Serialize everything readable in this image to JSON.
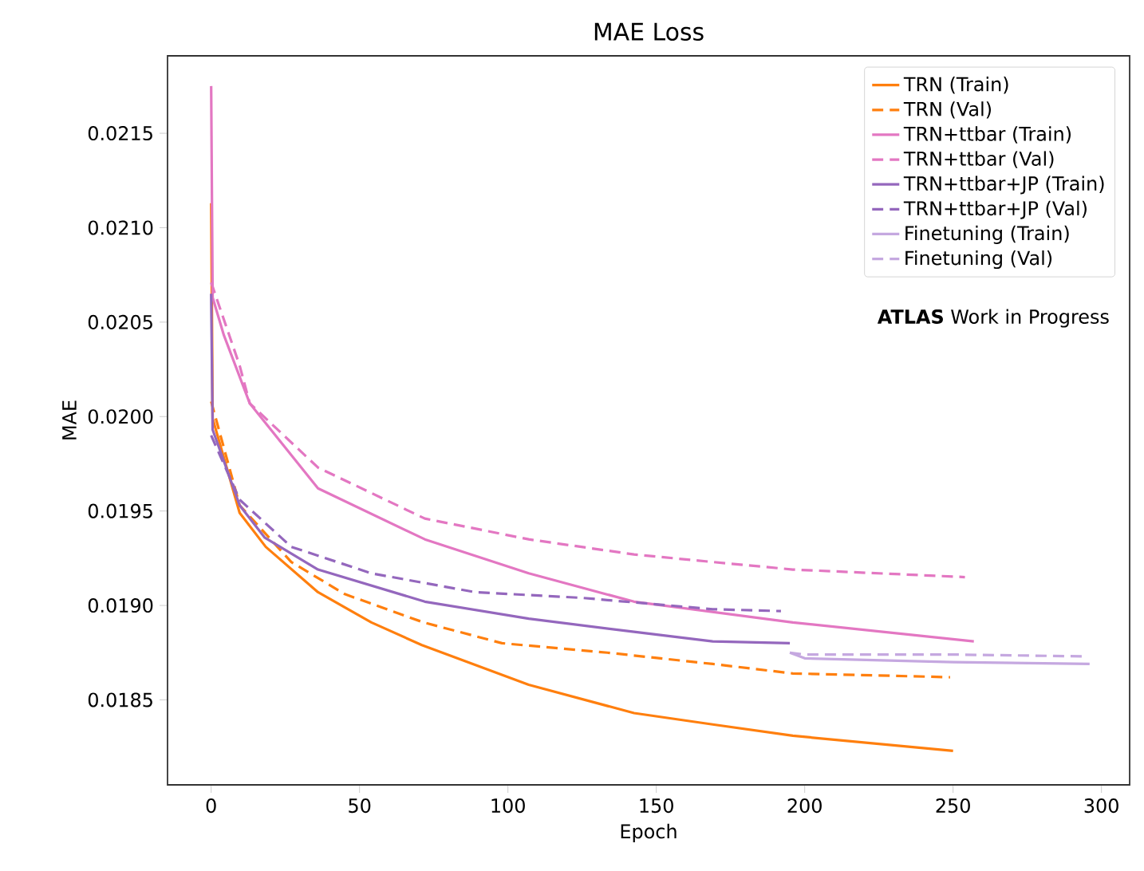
{
  "chart_data": {
    "type": "line",
    "title": "MAE Loss",
    "xlabel": "Epoch",
    "ylabel": "MAE",
    "xlim": [
      -14.7,
      309.5
    ],
    "ylim": [
      0.01805,
      0.02191
    ],
    "xticks": [
      0,
      50,
      100,
      150,
      200,
      250,
      300
    ],
    "yticks": [
      {
        "value": 0.0185,
        "label": "0.0185"
      },
      {
        "value": 0.019,
        "label": "0.0190"
      },
      {
        "value": 0.0195,
        "label": "0.0195"
      },
      {
        "value": 0.02,
        "label": "0.0200"
      },
      {
        "value": 0.0205,
        "label": "0.0205"
      },
      {
        "value": 0.021,
        "label": "0.0210"
      },
      {
        "value": 0.0215,
        "label": "0.0215"
      }
    ],
    "legend": "top right",
    "grid": false,
    "marker": "none",
    "annotations": [
      "**ATLAS** Work in Progress"
    ],
    "series": [
      {
        "name": "TRN (Train)",
        "color": "#ff7f0e",
        "line_style": "solid",
        "x": [
          0,
          0.5,
          9.6,
          18.4,
          36,
          54,
          71,
          107,
          142.5,
          169,
          196,
          250
        ],
        "values": [
          0.02113,
          0.01999,
          0.01949,
          0.01931,
          0.01907,
          0.01891,
          0.01879,
          0.01858,
          0.01843,
          0.01837,
          0.01831,
          0.01823
        ]
      },
      {
        "name": "TRN (Val)",
        "color": "#ff7f0e",
        "line_style": "dashed",
        "x": [
          0,
          9.6,
          27,
          45,
          71.6,
          98,
          133.5,
          169,
          196,
          249
        ],
        "values": [
          0.02008,
          0.01953,
          0.01923,
          0.01906,
          0.01891,
          0.0188,
          0.01875,
          0.01869,
          0.01864,
          0.01862
        ]
      },
      {
        "name": "TRN+ttbar (Train)",
        "color": "#e377c2",
        "line_style": "solid",
        "x": [
          0,
          0.5,
          4.3,
          13,
          36,
          72,
          107,
          142.5,
          196,
          257
        ],
        "values": [
          0.02175,
          0.02063,
          0.02043,
          0.02007,
          0.01962,
          0.01935,
          0.01917,
          0.01902,
          0.01891,
          0.01881
        ]
      },
      {
        "name": "TRN+ttbar (Val)",
        "color": "#e377c2",
        "line_style": "dashed",
        "x": [
          0,
          9.6,
          13,
          36,
          72,
          107,
          142.5,
          169,
          196,
          254
        ],
        "values": [
          0.02071,
          0.02027,
          0.02007,
          0.01973,
          0.01946,
          0.01935,
          0.01927,
          0.01923,
          0.01919,
          0.01915
        ]
      },
      {
        "name": "TRN+ttbar+JP (Train)",
        "color": "#9467bd",
        "line_style": "solid",
        "x": [
          0,
          0.5,
          9.6,
          18,
          36,
          72,
          107,
          142.5,
          169,
          195
        ],
        "values": [
          0.02065,
          0.01993,
          0.01953,
          0.01936,
          0.01919,
          0.01902,
          0.01893,
          0.01886,
          0.01881,
          0.0188
        ]
      },
      {
        "name": "TRN+ttbar+JP (Val)",
        "color": "#9467bd",
        "line_style": "dashed",
        "x": [
          0,
          9.6,
          27,
          54,
          89,
          125,
          169,
          192
        ],
        "values": [
          0.0199,
          0.01956,
          0.01931,
          0.01917,
          0.01907,
          0.01904,
          0.01898,
          0.01897
        ]
      },
      {
        "name": "Finetuning (Train)",
        "color": "#c5a8e0",
        "line_style": "solid",
        "x": [
          195,
          200,
          250,
          296
        ],
        "values": [
          0.01875,
          0.01872,
          0.0187,
          0.01869
        ]
      },
      {
        "name": "Finetuning (Val)",
        "color": "#c5a8e0",
        "line_style": "dashed",
        "x": [
          195,
          200,
          250,
          295
        ],
        "values": [
          0.01875,
          0.01874,
          0.01874,
          0.01873
        ]
      }
    ]
  }
}
